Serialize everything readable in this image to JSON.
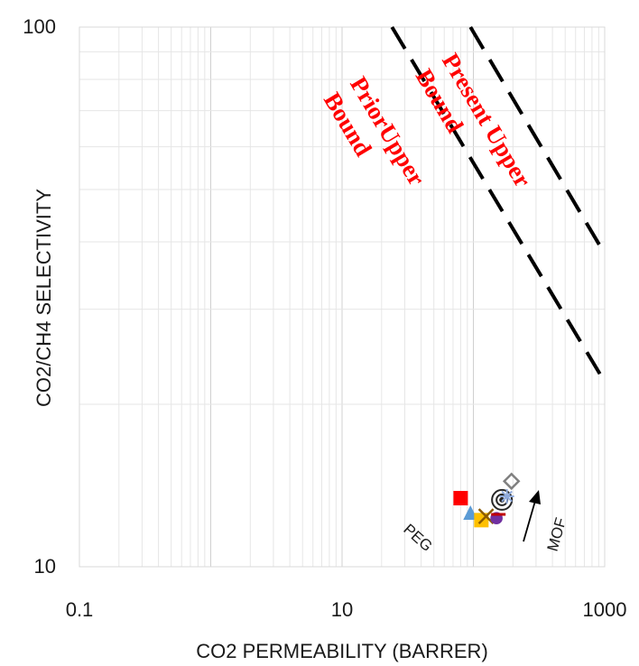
{
  "chart_data": {
    "type": "scatter",
    "title": "",
    "xlabel": "CO2 PERMEABILITY (BARRER)",
    "ylabel": "CO2/CH4 SELECTIVITY",
    "xscale": "log",
    "yscale": "log",
    "xlim": [
      0.1,
      1000
    ],
    "ylim": [
      10,
      100
    ],
    "x_tick_labels": [
      "0.1",
      "10",
      "1000"
    ],
    "y_tick_labels": [
      "10",
      "100"
    ],
    "grid": true,
    "legend": "none",
    "bound_lines": [
      {
        "name": "PriorUpper Bound",
        "style": "dashed",
        "color": "#000000",
        "points": [
          [
            24,
            100
          ],
          [
            1000,
            22
          ]
        ],
        "label_lines": [
          "PriorUpper",
          "Bound"
        ]
      },
      {
        "name": "Present Upper Bound",
        "style": "dashed",
        "color": "#000000",
        "points": [
          [
            95,
            100
          ],
          [
            1000,
            38
          ]
        ],
        "label_lines": [
          "Present Upper",
          "Bound"
        ]
      }
    ],
    "points": [
      {
        "marker": "square",
        "color": "#ff0000",
        "x": 80,
        "y": 13.4
      },
      {
        "marker": "triangle",
        "color": "#5b9bd5",
        "x": 95,
        "y": 12.6
      },
      {
        "marker": "square",
        "color": "#ffc000",
        "x": 115,
        "y": 12.2
      },
      {
        "marker": "x",
        "color": "#8b5a00",
        "x": 125,
        "y": 12.4
      },
      {
        "marker": "circle",
        "color": "#7030a0",
        "x": 150,
        "y": 12.3
      },
      {
        "marker": "dash",
        "color": "#c00000",
        "x": 155,
        "y": 12.5
      },
      {
        "marker": "target",
        "color": "#262626",
        "x": 165,
        "y": 13.3
      },
      {
        "marker": "star",
        "color": "#8faadc",
        "x": 180,
        "y": 13.5
      },
      {
        "marker": "diamond",
        "color": "#808080",
        "x": 195,
        "y": 14.4
      }
    ],
    "annotations": [
      {
        "text": "PEG"
      },
      {
        "text": "MOF"
      }
    ]
  }
}
